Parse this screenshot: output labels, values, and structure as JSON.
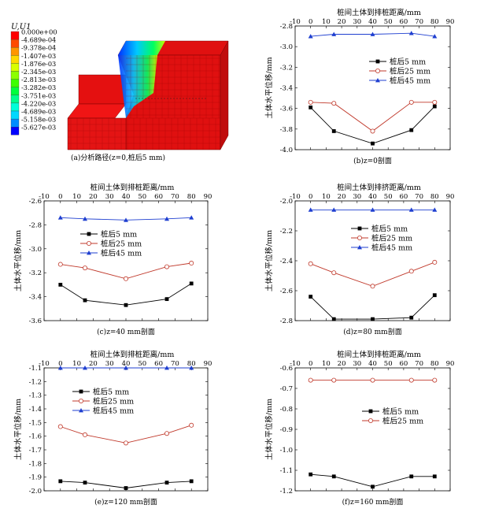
{
  "figure": {
    "legend_title": "U,U1",
    "legend_levels": [
      {
        "label": "0.000e+00",
        "color": "#ff0000"
      },
      {
        "label": "-4.689e-04",
        "color": "#ff4a00"
      },
      {
        "label": "-9.378e-04",
        "color": "#ff9600"
      },
      {
        "label": "-1.407e-03",
        "color": "#ffd800"
      },
      {
        "label": "-1.876e-03",
        "color": "#d8ff00"
      },
      {
        "label": "-2.345e-03",
        "color": "#8cff00"
      },
      {
        "label": "-2.813e-03",
        "color": "#3cff00"
      },
      {
        "label": "-3.282e-03",
        "color": "#00ff3c"
      },
      {
        "label": "-3.751e-03",
        "color": "#00ff8c"
      },
      {
        "label": "-4.220e-03",
        "color": "#00ffd8"
      },
      {
        "label": "-4.689e-03",
        "color": "#00d8ff"
      },
      {
        "label": "-5.158e-03",
        "color": "#008cff"
      },
      {
        "label": "-5.627e-03",
        "color": "#0000ff"
      }
    ],
    "panel_a_caption": "(a)分析路径(z=0,桩后5 mm)"
  },
  "colors": {
    "s5": "#000000",
    "s25": "#c0392b",
    "s45": "#1f3fd0"
  },
  "chart_data": [
    {
      "id": "b",
      "type": "line",
      "title": "桩间土体到排桩距离/mm",
      "ylabel": "土体水平位移/mm",
      "caption": "(b)z=0剖面",
      "xlim": [
        -10,
        90
      ],
      "xticks": [
        -10,
        0,
        10,
        20,
        30,
        40,
        50,
        60,
        70,
        80,
        90
      ],
      "ylim": [
        -4.0,
        -2.8
      ],
      "yticks": [
        -2.8,
        -3.0,
        -3.2,
        -3.4,
        -3.6,
        -3.8,
        -4.0
      ],
      "ydec": 1,
      "legend": "top-right",
      "series": [
        {
          "name": "桩后5 mm",
          "key": "s5",
          "marker": "square",
          "x": [
            0,
            15,
            40,
            65,
            80
          ],
          "y": [
            -3.59,
            -3.82,
            -3.94,
            -3.81,
            -3.58
          ]
        },
        {
          "name": "桩后25 mm",
          "key": "s25",
          "marker": "circle",
          "x": [
            0,
            15,
            40,
            65,
            80
          ],
          "y": [
            -3.54,
            -3.55,
            -3.82,
            -3.54,
            -3.54
          ]
        },
        {
          "name": "桩后45 mm",
          "key": "s45",
          "marker": "triangle",
          "x": [
            0,
            15,
            40,
            65,
            80
          ],
          "y": [
            -2.9,
            -2.88,
            -2.88,
            -2.87,
            -2.9
          ]
        }
      ]
    },
    {
      "id": "c",
      "type": "line",
      "title": "桩间土体到排桩距离/mm",
      "ylabel": "土体水平位移/mm",
      "caption": "(c)z=40 mm剖面",
      "xlim": [
        -10,
        90
      ],
      "xticks": [
        -10,
        0,
        10,
        20,
        30,
        40,
        50,
        60,
        70,
        80,
        90
      ],
      "ylim": [
        -3.6,
        -2.6
      ],
      "yticks": [
        -2.6,
        -2.8,
        -3.0,
        -3.2,
        -3.4,
        -3.6
      ],
      "ydec": 1,
      "legend": "center",
      "series": [
        {
          "name": "桩后5 mm",
          "key": "s5",
          "marker": "square",
          "x": [
            0,
            15,
            40,
            65,
            80
          ],
          "y": [
            -3.3,
            -3.43,
            -3.47,
            -3.42,
            -3.29
          ]
        },
        {
          "name": "桩后25 mm",
          "key": "s25",
          "marker": "circle",
          "x": [
            0,
            15,
            40,
            65,
            80
          ],
          "y": [
            -3.13,
            -3.16,
            -3.25,
            -3.15,
            -3.12
          ]
        },
        {
          "name": "桩后45 mm",
          "key": "s45",
          "marker": "triangle",
          "x": [
            0,
            15,
            40,
            65,
            80
          ],
          "y": [
            -2.74,
            -2.75,
            -2.76,
            -2.75,
            -2.74
          ]
        }
      ]
    },
    {
      "id": "d",
      "type": "line",
      "title": "桩间土体到排挤距离/mm",
      "ylabel": "土体水平位移/mm",
      "caption": "(d)z=80 mm剖面",
      "xlim": [
        -10,
        90
      ],
      "xticks": [
        -10,
        0,
        10,
        20,
        30,
        40,
        50,
        60,
        70,
        80,
        90
      ],
      "ylim": [
        -2.8,
        -2.0
      ],
      "yticks": [
        -2.0,
        -2.2,
        -2.4,
        -2.6,
        -2.8
      ],
      "ydec": 1,
      "legend": "center-right",
      "series": [
        {
          "name": "桩后5 mm",
          "key": "s5",
          "marker": "square",
          "x": [
            0,
            15,
            40,
            65,
            80
          ],
          "y": [
            -2.64,
            -2.79,
            -2.79,
            -2.78,
            -2.63
          ]
        },
        {
          "name": "桩后25 mm",
          "key": "s25",
          "marker": "circle",
          "x": [
            0,
            15,
            40,
            65,
            80
          ],
          "y": [
            -2.42,
            -2.48,
            -2.57,
            -2.47,
            -2.41
          ]
        },
        {
          "name": "桩后45 mm",
          "key": "s45",
          "marker": "triangle",
          "x": [
            0,
            15,
            40,
            65,
            80
          ],
          "y": [
            -2.06,
            -2.06,
            -2.06,
            -2.06,
            -2.06
          ]
        }
      ]
    },
    {
      "id": "e",
      "type": "line",
      "title": "桩间土体到排桩距离/mm",
      "ylabel": "土体水平位移/mm",
      "caption": "(e)z=120 mm剖面",
      "xlim": [
        -10,
        90
      ],
      "xticks": [
        -10,
        0,
        10,
        20,
        30,
        40,
        50,
        60,
        70,
        80,
        90
      ],
      "ylim": [
        -2.0,
        -1.1
      ],
      "yticks": [
        -1.1,
        -1.2,
        -1.3,
        -1.4,
        -1.5,
        -1.6,
        -1.7,
        -1.8,
        -1.9,
        -2.0
      ],
      "ydec": 1,
      "legend": "top-center",
      "series": [
        {
          "name": "桩后5 mm",
          "key": "s5",
          "marker": "square",
          "x": [
            0,
            15,
            40,
            65,
            80
          ],
          "y": [
            -1.93,
            -1.94,
            -1.98,
            -1.94,
            -1.93
          ]
        },
        {
          "name": "桩后25 mm",
          "key": "s25",
          "marker": "circle",
          "x": [
            0,
            15,
            40,
            65,
            80
          ],
          "y": [
            -1.53,
            -1.59,
            -1.65,
            -1.58,
            -1.52
          ]
        },
        {
          "name": "桩后45 mm",
          "key": "s45",
          "marker": "triangle",
          "x": [
            0,
            15,
            40,
            65,
            80
          ],
          "y": [
            -1.1,
            -1.1,
            -1.1,
            -1.1,
            -1.1
          ]
        }
      ]
    },
    {
      "id": "f",
      "type": "line",
      "title": "桩间土体到排桩距离/mm",
      "ylabel": "土体水平位移/mm",
      "caption": "(f)z=160 mm剖面",
      "xlim": [
        -10,
        90
      ],
      "xticks": [
        -10,
        0,
        10,
        20,
        30,
        40,
        50,
        60,
        70,
        80,
        90
      ],
      "ylim": [
        -1.2,
        -0.6
      ],
      "yticks": [
        -0.6,
        -0.7,
        -0.8,
        -0.9,
        -1.0,
        -1.1,
        -1.2
      ],
      "ydec": 1,
      "legend": "center-right",
      "series": [
        {
          "name": "桩后5 mm",
          "key": "s5",
          "marker": "square",
          "x": [
            0,
            15,
            40,
            65,
            80
          ],
          "y": [
            -1.12,
            -1.13,
            -1.18,
            -1.13,
            -1.13
          ]
        },
        {
          "name": "桩后25 mm",
          "key": "s25",
          "marker": "circle",
          "x": [
            0,
            15,
            40,
            65,
            80
          ],
          "y": [
            -0.66,
            -0.66,
            -0.66,
            -0.66,
            -0.66
          ]
        }
      ]
    }
  ]
}
